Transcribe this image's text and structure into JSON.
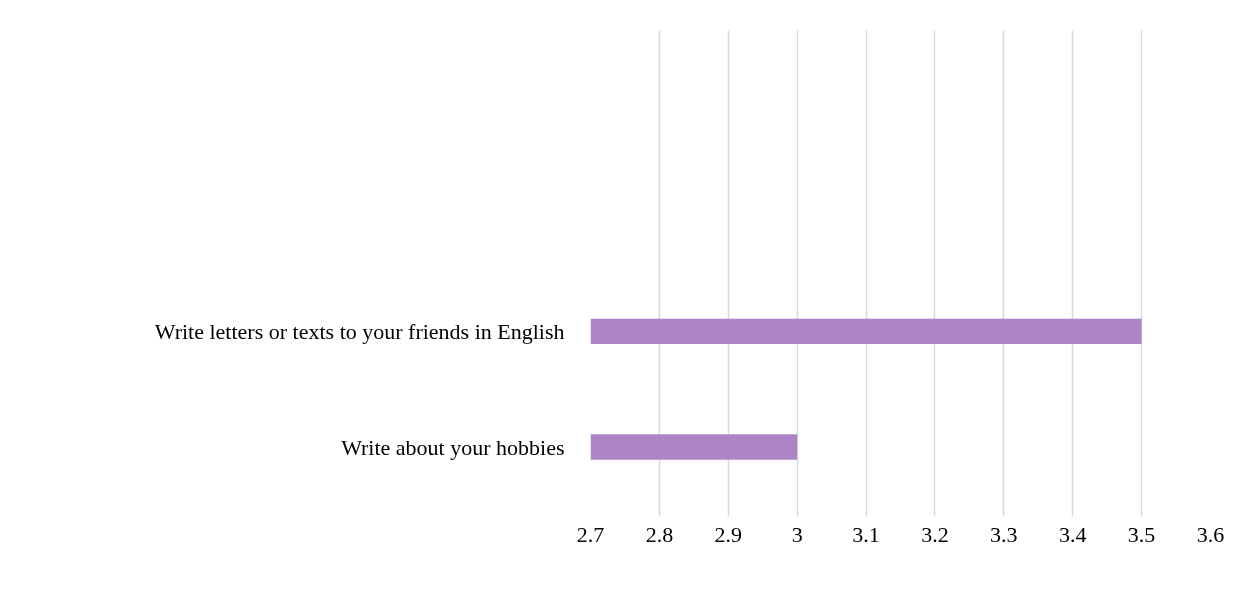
{
  "chart_data": {
    "type": "bar",
    "orientation": "horizontal",
    "categories": [
      null,
      null,
      "Write letters or texts to your friends in English",
      "Write about your hobbies"
    ],
    "values": [
      null,
      null,
      3.5,
      3.0
    ],
    "color": "#ad85c6",
    "xlim": [
      2.7,
      3.6
    ],
    "xticks": [
      2.7,
      2.8,
      2.9,
      3,
      3.1,
      3.2,
      3.3,
      3.4,
      3.5,
      3.6
    ],
    "grid": "x"
  }
}
